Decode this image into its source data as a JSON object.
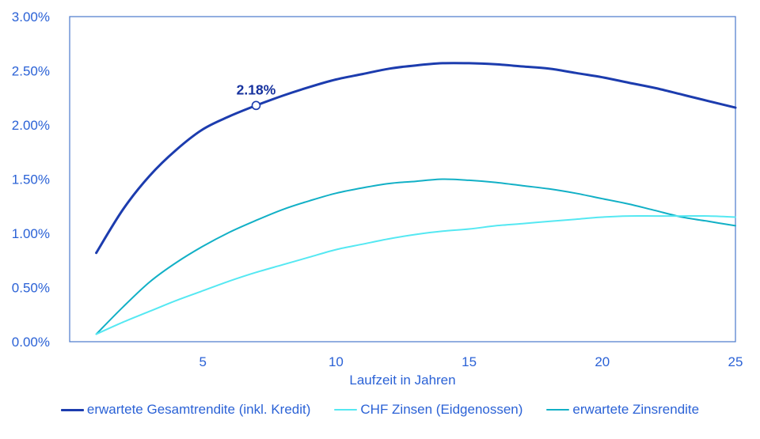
{
  "chart_data": {
    "type": "line",
    "title": "",
    "xlabel": "Laufzeit in Jahren",
    "ylabel": "",
    "xlim": [
      0,
      25
    ],
    "ylim": [
      0,
      3
    ],
    "grid": false,
    "legend_position": "bottom",
    "xticks": {
      "values": [
        5,
        10,
        15,
        20,
        25
      ],
      "labels": [
        "5",
        "10",
        "15",
        "20",
        "25"
      ]
    },
    "yticks": {
      "values": [
        0,
        0.5,
        1,
        1.5,
        2,
        2.5,
        3
      ],
      "labels": [
        "0.00%",
        "0.50%",
        "1.00%",
        "1.50%",
        "2.00%",
        "2.50%",
        "3.00%"
      ]
    },
    "x": [
      1,
      2,
      3,
      4,
      5,
      6,
      7,
      8,
      9,
      10,
      11,
      12,
      13,
      14,
      15,
      16,
      17,
      18,
      19,
      20,
      21,
      22,
      23,
      24,
      25
    ],
    "series": [
      {
        "name": "erwartete Gesamtrendite (inkl. Kredit)",
        "color": "#1c3cae",
        "line_width": 3,
        "values": [
          0.82,
          1.22,
          1.53,
          1.77,
          1.96,
          2.08,
          2.18,
          2.27,
          2.35,
          2.42,
          2.47,
          2.52,
          2.55,
          2.57,
          2.57,
          2.56,
          2.54,
          2.52,
          2.48,
          2.44,
          2.39,
          2.34,
          2.28,
          2.22,
          2.16
        ]
      },
      {
        "name": "CHF Zinsen (Eidgenossen)",
        "color": "#55e8f2",
        "line_width": 2,
        "values": [
          0.07,
          0.18,
          0.28,
          0.38,
          0.47,
          0.56,
          0.64,
          0.71,
          0.78,
          0.85,
          0.9,
          0.95,
          0.99,
          1.02,
          1.04,
          1.07,
          1.09,
          1.11,
          1.13,
          1.15,
          1.16,
          1.16,
          1.16,
          1.16,
          1.15
        ]
      },
      {
        "name": "erwartete Zinsrendite",
        "color": "#12b0c6",
        "line_width": 2,
        "values": [
          0.07,
          0.32,
          0.55,
          0.73,
          0.88,
          1.01,
          1.12,
          1.22,
          1.3,
          1.37,
          1.42,
          1.46,
          1.48,
          1.5,
          1.49,
          1.47,
          1.44,
          1.41,
          1.37,
          1.32,
          1.27,
          1.21,
          1.15,
          1.11,
          1.07
        ]
      }
    ],
    "annotation": {
      "x": 7,
      "y": 2.18,
      "label": "2.18%",
      "series": "erwartete Gesamtrendite (inkl. Kredit)"
    }
  },
  "colors": {
    "axis_line": "#4a78cc",
    "tick_text": "#2b62d6",
    "annotation_text": "#17329e",
    "background": "#ffffff"
  }
}
